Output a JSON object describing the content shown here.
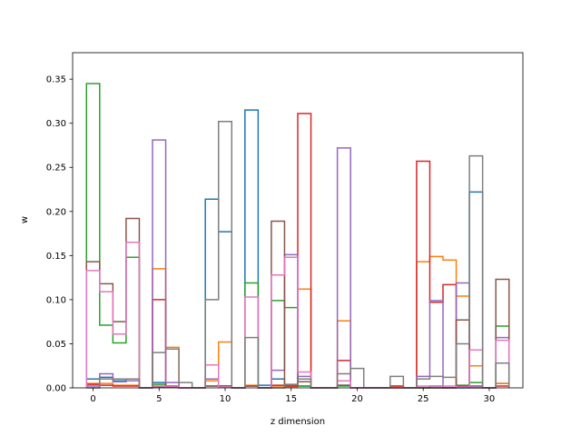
{
  "chart_data": {
    "type": "step",
    "title": "",
    "xlabel": "z dimension",
    "ylabel": "w",
    "xlim": [
      -1.55,
      32.55
    ],
    "ylim": [
      0,
      0.38
    ],
    "xticks": [
      0,
      5,
      10,
      15,
      20,
      25,
      30
    ],
    "yticks": [
      0.0,
      0.05,
      0.1,
      0.15,
      0.2,
      0.25,
      0.3,
      0.35
    ],
    "grid": false,
    "colors": [
      "#1f77b4",
      "#ff7f0e",
      "#2ca02c",
      "#d62728",
      "#9467bd",
      "#8c564b",
      "#e377c2",
      "#7f7f7f"
    ],
    "x": [
      0,
      1,
      2,
      3,
      4,
      5,
      6,
      7,
      8,
      9,
      10,
      11,
      12,
      13,
      14,
      15,
      16,
      17,
      18,
      19,
      20,
      21,
      22,
      23,
      24,
      25,
      26,
      27,
      28,
      29,
      30,
      31
    ],
    "series": [
      {
        "values": [
          0.01,
          0.012,
          0.008,
          0.01,
          0,
          0.006,
          0.002,
          0,
          0,
          0.214,
          0.177,
          0,
          0.315,
          0.003,
          0.01,
          0.003,
          0.002,
          0,
          0,
          0.003,
          0,
          0,
          0,
          0,
          0,
          0,
          0.002,
          0,
          0,
          0.222,
          0,
          0.005
        ]
      },
      {
        "values": [
          0.005,
          0.005,
          0.003,
          0.003,
          0,
          0.135,
          0.046,
          0,
          0,
          0.008,
          0.052,
          0,
          0.003,
          0,
          0.002,
          0.001,
          0.112,
          0,
          0,
          0.076,
          0,
          0,
          0,
          0.002,
          0,
          0.143,
          0.149,
          0.145,
          0.104,
          0.025,
          0,
          0.005
        ]
      },
      {
        "values": [
          0.345,
          0.071,
          0.051,
          0.148,
          0,
          0.004,
          0.002,
          0,
          0,
          0.002,
          0.002,
          0,
          0.119,
          0,
          0.099,
          0.091,
          0.002,
          0,
          0,
          0.002,
          0,
          0,
          0,
          0,
          0,
          0,
          0,
          0,
          0.003,
          0.006,
          0,
          0.07
        ]
      },
      {
        "values": [
          0.004,
          0.003,
          0.002,
          0.002,
          0,
          0.1,
          0.002,
          0,
          0,
          0.01,
          0.002,
          0,
          0.002,
          0,
          0.003,
          0.002,
          0.311,
          0,
          0,
          0.031,
          0,
          0,
          0,
          0.002,
          0,
          0.257,
          0.097,
          0.117,
          0.002,
          0.002,
          0,
          0.002
        ]
      },
      {
        "values": [
          0.002,
          0.016,
          0.007,
          0.008,
          0,
          0.281,
          0.006,
          0,
          0,
          0.01,
          0.002,
          0,
          0.002,
          0,
          0.02,
          0.151,
          0.013,
          0,
          0,
          0.272,
          0,
          0,
          0,
          0,
          0,
          0.013,
          0.099,
          0,
          0.119,
          0.002,
          0,
          0.057
        ]
      },
      {
        "values": [
          0.143,
          0.118,
          0.075,
          0.192,
          0,
          0.001,
          0.001,
          0,
          0,
          0.002,
          0.002,
          0,
          0.002,
          0,
          0.189,
          0.003,
          0.007,
          0,
          0,
          0.003,
          0,
          0,
          0,
          0,
          0,
          0,
          0,
          0,
          0.077,
          0,
          0,
          0.123
        ]
      },
      {
        "values": [
          0.133,
          0.109,
          0.061,
          0.165,
          0,
          0.002,
          0.002,
          0,
          0,
          0.026,
          0.001,
          0,
          0.103,
          0,
          0.128,
          0.148,
          0.018,
          0,
          0,
          0.008,
          0,
          0,
          0,
          0,
          0,
          0.002,
          0.002,
          0.002,
          0.001,
          0.043,
          0,
          0.054
        ]
      },
      {
        "values": [
          0,
          0.01,
          0.01,
          0.01,
          0,
          0.04,
          0.044,
          0.006,
          0,
          0.1,
          0.302,
          0,
          0.057,
          0,
          0,
          0.004,
          0.01,
          0,
          0,
          0.016,
          0.022,
          0,
          0,
          0.013,
          0,
          0.01,
          0.013,
          0.012,
          0.05,
          0.263,
          0,
          0.028
        ]
      }
    ]
  }
}
